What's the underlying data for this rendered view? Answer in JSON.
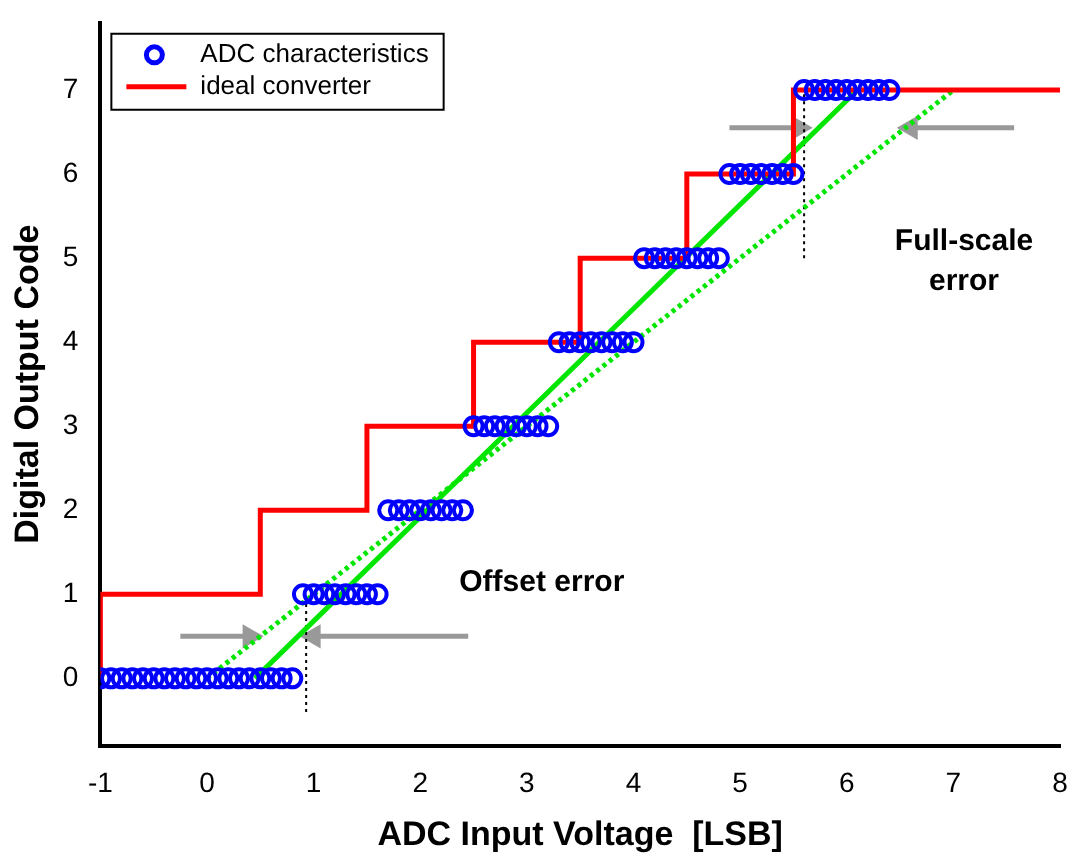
{
  "chart_data": {
    "type": "scatter",
    "xlabel": "ADC Input Voltage  [LSB]",
    "ylabel": "Digital Output Code",
    "xlim": [
      -1,
      8
    ],
    "ylim": [
      -0.8,
      7.8
    ],
    "xticks": [
      -1,
      0,
      1,
      2,
      3,
      4,
      5,
      6,
      7,
      8
    ],
    "yticks": [
      0,
      1,
      2,
      3,
      4,
      5,
      6,
      7
    ],
    "grid": false,
    "legend": "top left",
    "series": [
      {
        "name": "ADC characteristics",
        "type": "scatter",
        "color": "#0000ff",
        "marker": "circle",
        "x": [
          -1,
          -0.9,
          -0.8,
          -0.7,
          -0.6,
          -0.5,
          -0.4,
          -0.3,
          -0.2,
          -0.1,
          0,
          0.1,
          0.2,
          0.3,
          0.4,
          0.5,
          0.6,
          0.7,
          0.8,
          0.9,
          1,
          1.1,
          1.2,
          1.3,
          1.4,
          1.5,
          1.6,
          1.7,
          1.8,
          1.9,
          2,
          2.1,
          2.2,
          2.3,
          2.4,
          2.5,
          2.6,
          2.7,
          2.8,
          2.9,
          3,
          3.1,
          3.2,
          3.3,
          3.4,
          3.5,
          3.6,
          3.7,
          3.8,
          3.9,
          4,
          4.1,
          4.2,
          4.3,
          4.4,
          4.5,
          4.6,
          4.7,
          4.8,
          4.9,
          5,
          5.1,
          5.2,
          5.3,
          5.4,
          5.5,
          5.6,
          5.7,
          5.8,
          5.9,
          6,
          6.1,
          6.2,
          6.3,
          6.4
        ],
        "values": [
          0,
          0,
          0,
          0,
          0,
          0,
          0,
          0,
          0,
          0,
          0,
          0,
          0,
          0,
          0,
          0,
          0,
          0,
          0,
          1,
          1,
          1,
          1,
          1,
          1,
          1,
          1,
          2,
          2,
          2,
          2,
          2,
          2,
          2,
          2,
          3,
          3,
          3,
          3,
          3,
          3,
          3,
          3,
          4,
          4,
          4,
          4,
          4,
          4,
          4,
          4,
          5,
          5,
          5,
          5,
          5,
          5,
          5,
          5,
          6,
          6,
          6,
          6,
          6,
          6,
          6,
          7,
          7,
          7,
          7,
          7,
          7,
          7,
          7,
          7
        ]
      },
      {
        "name": "ideal converter",
        "type": "step",
        "color": "#ff0000",
        "marker": "none",
        "x": [
          -1,
          0.5,
          1.5,
          2.5,
          3.5,
          4.5,
          5.5,
          6.5,
          8
        ],
        "values": [
          0,
          1,
          2,
          3,
          4,
          5,
          6,
          7,
          7
        ]
      },
      {
        "type": "line",
        "color": "#00e600",
        "marker": "none",
        "line_style": "solid",
        "x": [
          0.45,
          6.1
        ],
        "values": [
          0,
          7
        ]
      },
      {
        "type": "line",
        "color": "#00e600",
        "marker": "none",
        "line_style": "dotted",
        "x": [
          0,
          7
        ],
        "values": [
          0,
          7
        ]
      },
      {
        "type": "line",
        "color": "#000000",
        "marker": "none",
        "line_style": "dotted",
        "x": [
          0.93,
          0.93
        ],
        "values": [
          -0.4,
          1
        ]
      },
      {
        "type": "line",
        "color": "#000000",
        "marker": "none",
        "line_style": "dotted",
        "x": [
          5.6,
          5.6
        ],
        "values": [
          5,
          7
        ]
      },
      {
        "type": "line",
        "color": "#999999",
        "marker": "triangle",
        "line_style": "solid",
        "x": [
          -0.25,
          0.4
        ],
        "values": [
          0.5,
          0.5
        ]
      },
      {
        "type": "line",
        "color": "#999999",
        "marker": "triangle",
        "line_style": "solid",
        "x": [
          2.45,
          1.0
        ],
        "values": [
          0.5,
          0.5
        ]
      },
      {
        "type": "line",
        "color": "#999999",
        "marker": "triangle",
        "line_style": "solid",
        "x": [
          4.9,
          5.55
        ],
        "values": [
          6.55,
          6.55
        ]
      },
      {
        "type": "line",
        "color": "#999999",
        "marker": "triangle",
        "line_style": "solid",
        "x": [
          7.57,
          6.6
        ],
        "values": [
          6.55,
          6.55
        ]
      }
    ],
    "annotations": [
      "Offset error",
      "Full-scale error"
    ]
  }
}
